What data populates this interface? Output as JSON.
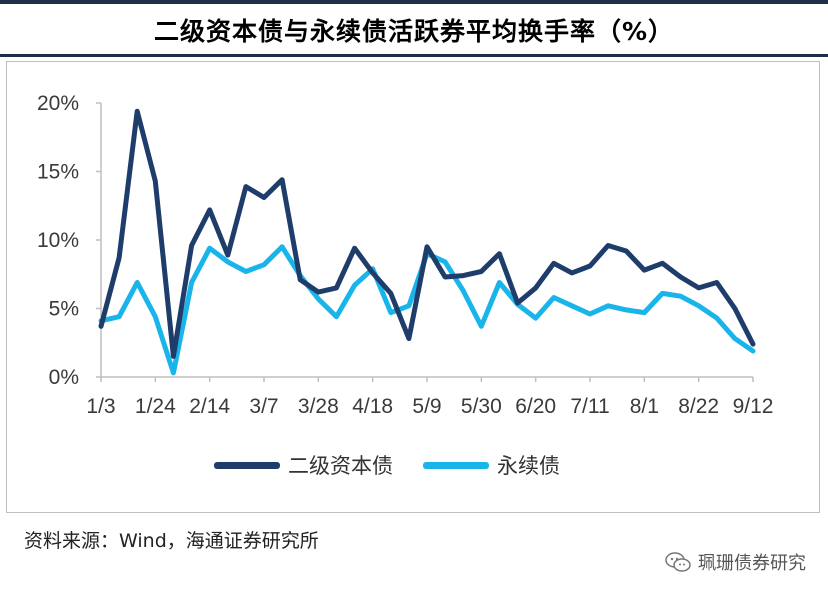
{
  "title": "二级资本债与永续债活跃券平均换手率（%）",
  "source": "资料来源：Wind，海通证券研究所",
  "watermark": "珮珊债券研究",
  "colors": {
    "series1": "#1f3d6b",
    "series2": "#19b4ea",
    "axis": "#bfbfbf",
    "rule": "#1f2f4a"
  },
  "chart_data": {
    "type": "line",
    "title": "二级资本债与永续债活跃券平均换手率（%）",
    "xlabel": "",
    "ylabel": "",
    "x": [
      "1/3",
      "1/10",
      "1/17",
      "1/24",
      "1/31",
      "2/7",
      "2/14",
      "2/21",
      "2/28",
      "3/7",
      "3/14",
      "3/21",
      "3/28",
      "4/4",
      "4/11",
      "4/18",
      "4/25",
      "5/2",
      "5/9",
      "5/16",
      "5/23",
      "5/30",
      "6/6",
      "6/13",
      "6/20",
      "6/27",
      "7/4",
      "7/11",
      "7/18",
      "7/25",
      "8/1",
      "8/8",
      "8/15",
      "8/22",
      "8/29",
      "9/5",
      "9/12"
    ],
    "x_tick_labels": [
      "1/3",
      "1/24",
      "2/14",
      "3/7",
      "3/28",
      "4/18",
      "5/9",
      "5/30",
      "6/20",
      "7/11",
      "8/1",
      "8/22",
      "9/12"
    ],
    "y_tick_labels": [
      "0%",
      "5%",
      "10%",
      "15%",
      "20%"
    ],
    "ylim": [
      0,
      20
    ],
    "y_unit": "%",
    "legend_position": "bottom",
    "grid": false,
    "series": [
      {
        "name": "二级资本债",
        "values": [
          3.7,
          8.7,
          19.4,
          14.3,
          1.5,
          9.6,
          12.2,
          8.9,
          13.9,
          13.1,
          14.4,
          7.1,
          6.2,
          6.5,
          9.4,
          7.6,
          6.1,
          2.8,
          9.5,
          7.3,
          7.4,
          7.7,
          9.0,
          5.4,
          6.5,
          8.3,
          7.6,
          8.1,
          9.6,
          9.2,
          7.8,
          8.3,
          7.3,
          6.5,
          6.9,
          5.0,
          2.4
        ]
      },
      {
        "name": "永续债",
        "values": [
          4.1,
          4.4,
          6.9,
          4.4,
          0.3,
          6.9,
          9.4,
          8.4,
          7.7,
          8.2,
          9.5,
          7.4,
          5.7,
          4.4,
          6.7,
          7.9,
          4.7,
          5.2,
          9.0,
          8.4,
          6.3,
          3.7,
          6.9,
          5.3,
          4.3,
          5.8,
          5.2,
          4.6,
          5.2,
          4.9,
          4.7,
          6.1,
          5.9,
          5.2,
          4.3,
          2.8,
          1.9
        ]
      }
    ]
  }
}
